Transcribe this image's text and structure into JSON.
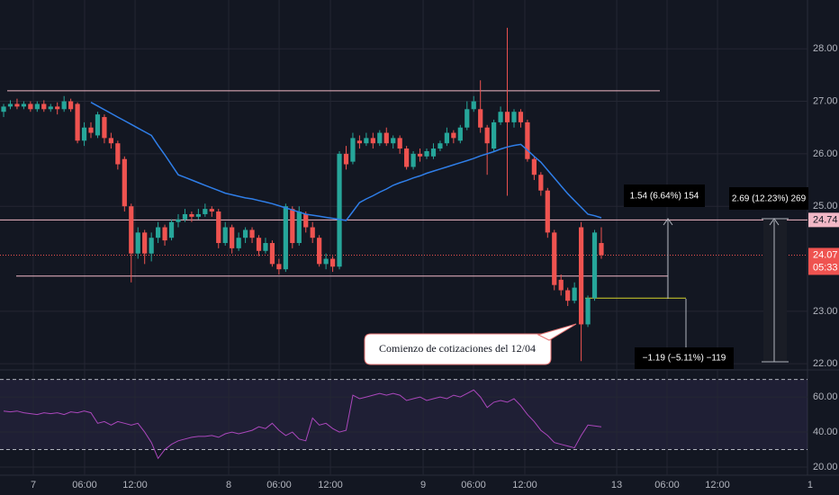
{
  "chart_data": {
    "type": "candlestick",
    "open": [
      26.8,
      26.9,
      26.95,
      26.9,
      26.95,
      26.85,
      26.95,
      26.85,
      26.9,
      26.85,
      27.0,
      26.95,
      26.25,
      26.5,
      26.35,
      26.7,
      26.3,
      26.2,
      25.9,
      25.0,
      24.1,
      24.5,
      24.1,
      24.4,
      24.6,
      24.4,
      24.7,
      24.75,
      24.85,
      24.8,
      24.85,
      24.95,
      24.9,
      24.3,
      24.6,
      24.2,
      24.4,
      24.55,
      24.4,
      24.15,
      24.3,
      23.9,
      23.8,
      24.95,
      24.3,
      24.85,
      24.6,
      24.4,
      23.9,
      24.0,
      23.85,
      26.0,
      25.85,
      26.25,
      26.2,
      26.3,
      26.2,
      26.4,
      26.2,
      26.3,
      26.1,
      25.75,
      26.0,
      25.95,
      25.95,
      26.1,
      26.2,
      26.4,
      26.25,
      26.5,
      26.85,
      26.85,
      26.5,
      26.1,
      26.6,
      26.8,
      26.6,
      26.8,
      26.6,
      25.9,
      25.6,
      25.3,
      24.5,
      23.6,
      23.4,
      23.2,
      24.6,
      22.75,
      23.25,
      24.3
    ],
    "high": [
      26.95,
      27.02,
      27.05,
      27.0,
      27.0,
      27.0,
      27.02,
      26.95,
      26.98,
      27.1,
      27.05,
      26.98,
      26.6,
      26.6,
      26.8,
      26.75,
      26.4,
      26.25,
      25.95,
      25.05,
      24.6,
      24.55,
      24.5,
      24.7,
      24.65,
      24.75,
      24.85,
      24.95,
      24.9,
      24.95,
      25.05,
      25.0,
      24.95,
      24.7,
      24.65,
      24.5,
      24.6,
      24.6,
      24.45,
      24.4,
      24.35,
      24.0,
      25.05,
      25.0,
      25.0,
      24.9,
      24.7,
      24.45,
      24.1,
      24.05,
      26.05,
      26.15,
      26.4,
      26.35,
      26.4,
      26.4,
      26.45,
      26.5,
      26.35,
      26.35,
      26.15,
      26.05,
      26.1,
      26.1,
      26.2,
      26.25,
      26.5,
      26.45,
      26.55,
      27.0,
      27.1,
      27.4,
      26.55,
      26.65,
      26.9,
      28.4,
      26.85,
      26.85,
      26.65,
      25.95,
      25.65,
      25.35,
      24.55,
      23.7,
      23.45,
      23.55,
      24.7,
      23.3,
      24.55,
      24.6
    ],
    "low": [
      26.7,
      26.85,
      26.85,
      26.85,
      26.8,
      26.8,
      26.8,
      26.8,
      26.75,
      26.8,
      26.8,
      26.2,
      26.15,
      26.3,
      26.3,
      26.2,
      26.1,
      25.7,
      24.9,
      23.55,
      24.0,
      23.9,
      23.95,
      24.3,
      24.25,
      24.35,
      24.6,
      24.7,
      24.7,
      24.75,
      24.8,
      24.8,
      24.2,
      24.25,
      24.1,
      24.15,
      24.3,
      24.3,
      24.05,
      24.1,
      23.85,
      23.7,
      23.75,
      24.2,
      24.25,
      24.5,
      24.3,
      23.85,
      23.8,
      23.75,
      23.8,
      25.7,
      25.8,
      26.1,
      26.15,
      26.1,
      26.15,
      26.15,
      26.1,
      26.0,
      25.7,
      25.7,
      25.85,
      25.9,
      25.9,
      26.05,
      26.15,
      26.2,
      26.2,
      26.45,
      26.8,
      26.4,
      25.6,
      26.05,
      26.55,
      25.2,
      26.5,
      26.5,
      25.85,
      25.5,
      25.2,
      24.4,
      23.4,
      23.3,
      23.1,
      23.15,
      22.05,
      22.7,
      23.2,
      24.0
    ],
    "close": [
      26.9,
      26.95,
      26.9,
      26.95,
      26.85,
      26.95,
      26.85,
      26.9,
      26.85,
      27.0,
      26.85,
      26.25,
      26.5,
      26.4,
      26.75,
      26.3,
      26.2,
      25.8,
      25.0,
      24.1,
      24.5,
      24.1,
      24.4,
      24.6,
      24.35,
      24.7,
      24.75,
      24.85,
      24.8,
      24.85,
      24.95,
      24.9,
      24.3,
      24.6,
      24.2,
      24.4,
      24.55,
      24.4,
      24.15,
      24.3,
      23.9,
      23.8,
      25.0,
      24.3,
      24.9,
      24.6,
      24.4,
      23.9,
      24.0,
      23.85,
      26.0,
      25.8,
      26.3,
      26.2,
      26.3,
      26.2,
      26.4,
      26.2,
      26.3,
      26.1,
      25.75,
      26.0,
      25.95,
      26.05,
      26.1,
      26.2,
      26.4,
      26.3,
      26.5,
      26.85,
      27.0,
      26.5,
      26.2,
      26.6,
      26.8,
      26.6,
      26.8,
      26.6,
      25.9,
      25.6,
      25.3,
      24.5,
      23.5,
      23.4,
      23.2,
      23.45,
      22.75,
      23.25,
      24.5,
      24.07
    ],
    "ma": {
      "color": "#2f7ee8",
      "values": [
        null,
        null,
        null,
        null,
        null,
        null,
        null,
        null,
        null,
        null,
        null,
        null,
        null,
        26.98,
        26.91,
        26.84,
        26.77,
        26.7,
        26.63,
        26.56,
        26.49,
        26.42,
        26.35,
        26.16,
        25.98,
        25.79,
        25.6,
        25.55,
        25.5,
        25.45,
        25.4,
        25.35,
        25.3,
        25.25,
        25.22,
        25.19,
        25.16,
        25.14,
        25.11,
        25.08,
        25.05,
        25.01,
        24.97,
        24.93,
        24.89,
        24.85,
        24.83,
        24.81,
        24.79,
        24.77,
        24.75,
        24.73,
        24.9,
        25.07,
        25.14,
        25.2,
        25.27,
        25.33,
        25.4,
        25.45,
        25.49,
        25.54,
        25.58,
        25.63,
        25.67,
        25.71,
        25.75,
        25.79,
        25.83,
        25.87,
        25.91,
        25.96,
        26.0,
        26.04,
        26.09,
        26.13,
        26.16,
        26.18,
        26.07,
        25.95,
        25.84,
        25.69,
        25.54,
        25.39,
        25.24,
        25.11,
        24.98,
        24.85,
        24.82,
        24.78
      ]
    },
    "up_color": "#26a69a",
    "down_color": "#ef5350",
    "ylim": [
      21.9,
      28.93
    ],
    "yticks": [
      {
        "value": 28,
        "label": "28.00"
      },
      {
        "value": 27,
        "label": "27.00"
      },
      {
        "value": 26,
        "label": "26.00"
      },
      {
        "value": 25,
        "label": "25.00"
      },
      {
        "value": 23,
        "label": "23.00"
      },
      {
        "value": 22,
        "label": "22.00"
      }
    ],
    "xlim": [
      -0.54,
      119.7
    ],
    "xticks": [
      {
        "value": 4.42,
        "label": "7"
      },
      {
        "value": 12.06,
        "label": "06:00"
      },
      {
        "value": 19.57,
        "label": "12:00"
      },
      {
        "value": 33.51,
        "label": "8"
      },
      {
        "value": 41.02,
        "label": "06:00"
      },
      {
        "value": 48.66,
        "label": "12:00"
      },
      {
        "value": 62.47,
        "label": "9"
      },
      {
        "value": 69.97,
        "label": "06:00"
      },
      {
        "value": 77.61,
        "label": "12:00"
      },
      {
        "value": 91.29,
        "label": "13"
      },
      {
        "value": 98.79,
        "label": "06:00"
      },
      {
        "value": 106.3,
        "label": "12:00"
      },
      {
        "value": 120.1,
        "label": "1"
      }
    ],
    "hlines": [
      27.2,
      24.74,
      23.67
    ],
    "hline_color": "#f2b8c6",
    "yellow_line": 23.25,
    "last_price": 24.07,
    "level_tag": 24.74,
    "countdown": "05:33",
    "measures": [
      "1.54 (6.64%) 154",
      "2.69 (12.23%) 269",
      "−1.19 (−5.11%) −119"
    ],
    "callout": "Comienzo de cotizaciones del 12/04",
    "rsi": {
      "color": "#ab47bc",
      "ylim": [
        15.4,
        74.4
      ],
      "yticks": [
        {
          "value": 60,
          "label": "60.00"
        },
        {
          "value": 40,
          "label": "40.00"
        },
        {
          "value": 20,
          "label": "20.00"
        }
      ],
      "bands": [
        70,
        30
      ],
      "values": [
        52,
        51.5,
        52,
        51,
        50.5,
        50,
        51,
        50.5,
        51,
        50,
        51.5,
        51,
        52,
        51,
        45,
        46,
        44,
        46,
        45,
        44,
        45,
        40,
        34,
        25,
        30,
        33,
        35,
        36,
        37,
        37.5,
        37.5,
        38,
        37,
        39,
        40,
        39,
        40,
        41,
        43,
        42,
        45,
        41,
        38,
        40,
        36,
        35,
        48,
        44,
        45,
        42,
        40,
        41,
        61,
        59,
        60,
        61,
        62,
        61,
        62,
        61,
        58,
        59,
        60,
        58,
        59,
        60,
        59,
        61,
        60,
        62,
        64,
        60,
        54,
        57,
        58,
        57,
        59,
        55,
        50,
        46,
        41,
        38,
        34,
        33,
        32,
        31,
        38,
        44,
        43.5,
        43
      ]
    }
  }
}
